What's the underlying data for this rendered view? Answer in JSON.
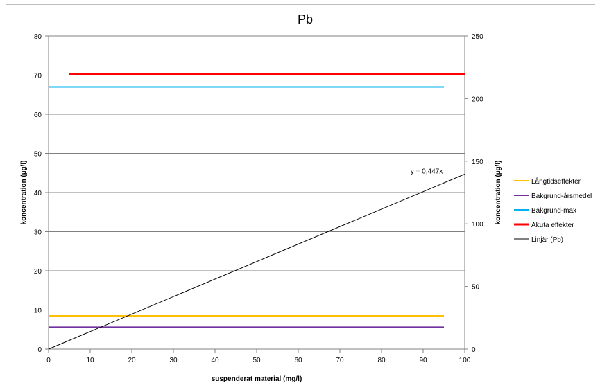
{
  "chart_data": {
    "type": "line",
    "title": "Pb",
    "xlabel": "suspenderat material (mg/l)",
    "ylabel": "koncentration (µg/l)",
    "y2label": "koncentration (µg/l)",
    "xlim": [
      0,
      100
    ],
    "ylim": [
      0,
      80
    ],
    "y2lim": [
      0,
      250
    ],
    "x_ticks": [
      0,
      10,
      20,
      30,
      40,
      50,
      60,
      70,
      80,
      90,
      100
    ],
    "y_ticks": [
      0,
      10,
      20,
      30,
      40,
      50,
      60,
      70,
      80
    ],
    "y2_ticks": [
      0,
      50,
      100,
      150,
      200,
      250
    ],
    "grid": "horizontal",
    "legend_position": "right",
    "series": [
      {
        "name": "Långtidseffekter",
        "color": "#FFC000",
        "width": 2,
        "points": [
          [
            0,
            8.5
          ],
          [
            95,
            8.5
          ]
        ]
      },
      {
        "name": "Bakgrund-årsmedel",
        "color": "#7030A0",
        "width": 2,
        "points": [
          [
            0,
            5.6
          ],
          [
            95,
            5.6
          ]
        ]
      },
      {
        "name": "Bakgrund-max",
        "color": "#00B0F0",
        "width": 2,
        "points": [
          [
            0,
            67
          ],
          [
            95,
            67
          ]
        ]
      },
      {
        "name": "Akuta effekter",
        "color": "#FF0000",
        "width": 3,
        "points": [
          [
            5,
            70.3
          ],
          [
            100,
            70.3
          ]
        ]
      },
      {
        "name": "Linjär (Pb)",
        "color": "#000000",
        "width": 1,
        "points": [
          [
            0,
            0
          ],
          [
            100,
            44.7
          ]
        ]
      }
    ],
    "annotation": {
      "text": "y = 0,447x",
      "x": 91,
      "y": 44.7
    }
  }
}
